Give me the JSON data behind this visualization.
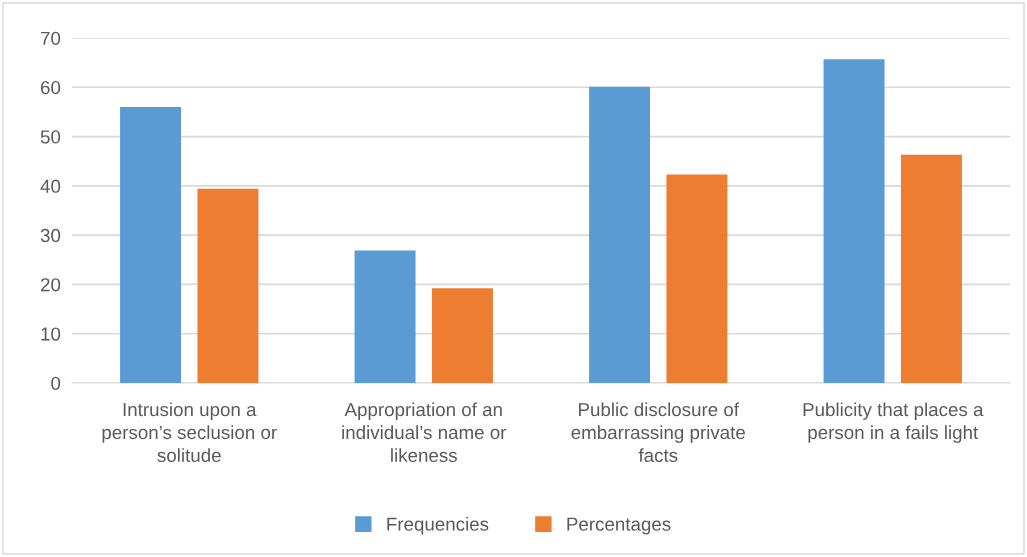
{
  "chart_data": {
    "type": "bar",
    "categories": [
      "Intrusion upon a\nperson’s seclusion or\nsolitude",
      "Appropriation of an\nindividual’s name or\nlikeness",
      "Public disclosure of\nembarrassing private\nfacts",
      "Publicity that places a\nperson in a fails light"
    ],
    "series": [
      {
        "name": "Frequencies",
        "color": "#5b9bd5",
        "values": [
          56.0,
          26.9,
          60.1,
          65.7
        ]
      },
      {
        "name": "Percentages",
        "color": "#ed7d31",
        "values": [
          39.4,
          19.2,
          42.3,
          46.3
        ]
      }
    ],
    "ylim": [
      0,
      70
    ],
    "yticks": [
      0,
      10,
      20,
      30,
      40,
      50,
      60,
      70
    ],
    "grid": "y",
    "legend": "bottom"
  }
}
